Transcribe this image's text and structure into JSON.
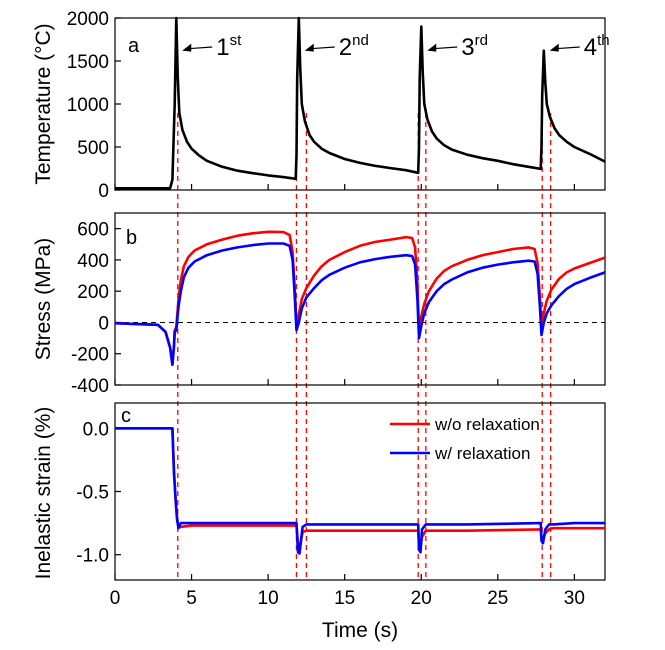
{
  "chart_data": [
    {
      "type": "line",
      "panel_label": "a",
      "ylabel": "Temperature (°C)",
      "ylim": [
        0,
        2000
      ],
      "yticks": [
        "0",
        "500",
        "1000",
        "1500",
        "2000"
      ],
      "xlim": [
        0,
        32
      ],
      "series": [
        {
          "color": "#000000",
          "x": [
            0,
            3.6,
            3.75,
            3.9,
            4.0,
            4.1,
            4.2,
            4.4,
            4.7,
            5.0,
            5.5,
            6,
            7,
            8,
            9,
            10,
            11,
            11.8,
            11.85,
            11.9,
            12.0,
            12.1,
            12.2,
            12.4,
            12.7,
            13,
            13.5,
            14,
            15,
            16,
            17,
            18,
            19,
            19.8,
            19.85,
            19.9,
            20.0,
            20.1,
            20.2,
            20.4,
            20.7,
            21,
            21.5,
            22,
            23,
            24,
            25,
            26,
            27,
            27.8,
            27.85,
            27.9,
            28.0,
            28.1,
            28.2,
            28.4,
            28.7,
            29,
            29.5,
            30,
            31,
            32
          ],
          "y": [
            20,
            20,
            120,
            1000,
            2000,
            1300,
            900,
            700,
            560,
            480,
            400,
            340,
            270,
            225,
            195,
            170,
            150,
            130,
            400,
            1300,
            2000,
            1400,
            1000,
            800,
            640,
            560,
            480,
            430,
            360,
            315,
            280,
            255,
            230,
            200,
            500,
            1300,
            1900,
            1350,
            1000,
            820,
            680,
            600,
            520,
            470,
            410,
            370,
            340,
            300,
            270,
            245,
            500,
            1100,
            1620,
            1250,
            1000,
            850,
            720,
            640,
            560,
            500,
            420,
            330
          ]
        }
      ],
      "annotations": [
        {
          "base": "1",
          "sup": "st",
          "x": 4.0,
          "y": 1620
        },
        {
          "base": "2",
          "sup": "nd",
          "x": 12.0,
          "y": 1620
        },
        {
          "base": "3",
          "sup": "rd",
          "x": 20.0,
          "y": 1620
        },
        {
          "base": "4",
          "sup": "th",
          "x": 28.0,
          "y": 1620
        }
      ]
    },
    {
      "type": "line",
      "panel_label": "b",
      "ylabel": "Stress (MPa)",
      "ylim": [
        -400,
        700
      ],
      "yticks": [
        "-400",
        "-200",
        "0",
        "200",
        "400",
        "600"
      ],
      "xlim": [
        0,
        32
      ],
      "zero_line": true,
      "series": [
        {
          "color": "#ff0000",
          "x": [
            0,
            2.8,
            3.3,
            3.6,
            3.75,
            3.85,
            3.9,
            4.0,
            4.15,
            4.3,
            4.5,
            4.8,
            5.2,
            6,
            7,
            8,
            9,
            10,
            11,
            11.4,
            11.6,
            11.75,
            11.85,
            12.0,
            12.2,
            12.5,
            13,
            13.5,
            14,
            15,
            16,
            17,
            18,
            19,
            19.4,
            19.6,
            19.75,
            19.85,
            20.0,
            20.2,
            20.5,
            21,
            21.5,
            22,
            23,
            24,
            25,
            26,
            27,
            27.4,
            27.6,
            27.75,
            27.85,
            28.0,
            28.2,
            28.5,
            29,
            29.5,
            30,
            31,
            32
          ],
          "y": [
            -5,
            -15,
            -60,
            -160,
            -270,
            -150,
            -50,
            -30,
            150,
            270,
            360,
            420,
            460,
            500,
            530,
            555,
            570,
            580,
            578,
            560,
            450,
            200,
            -20,
            50,
            150,
            220,
            300,
            360,
            400,
            450,
            490,
            515,
            530,
            545,
            540,
            480,
            250,
            -40,
            40,
            120,
            200,
            280,
            330,
            360,
            400,
            430,
            450,
            470,
            480,
            470,
            380,
            160,
            -20,
            60,
            140,
            210,
            280,
            320,
            345,
            380,
            415
          ]
        },
        {
          "color": "#0000ff",
          "x": [
            0,
            2.8,
            3.3,
            3.6,
            3.75,
            3.85,
            3.9,
            4.0,
            4.15,
            4.3,
            4.5,
            4.8,
            5.2,
            6,
            7,
            8,
            9,
            10,
            11,
            11.4,
            11.6,
            11.75,
            11.85,
            12.0,
            12.2,
            12.5,
            13,
            13.5,
            14,
            15,
            16,
            17,
            18,
            19,
            19.4,
            19.6,
            19.75,
            19.85,
            20.0,
            20.2,
            20.5,
            21,
            21.5,
            22,
            23,
            24,
            25,
            26,
            27,
            27.4,
            27.6,
            27.75,
            27.85,
            28.0,
            28.2,
            28.5,
            29,
            29.5,
            30,
            31,
            32
          ],
          "y": [
            -5,
            -15,
            -60,
            -160,
            -270,
            -150,
            -60,
            -50,
            100,
            200,
            290,
            350,
            390,
            430,
            460,
            480,
            495,
            505,
            505,
            490,
            400,
            150,
            -50,
            0,
            90,
            160,
            220,
            270,
            305,
            350,
            385,
            405,
            420,
            430,
            425,
            370,
            150,
            -100,
            -20,
            60,
            130,
            200,
            245,
            275,
            320,
            350,
            370,
            385,
            395,
            390,
            310,
            100,
            -80,
            0,
            60,
            110,
            170,
            215,
            245,
            285,
            320
          ]
        }
      ]
    },
    {
      "type": "line",
      "panel_label": "c",
      "ylabel": "Inelastic strain (%)",
      "ylim": [
        -1.2,
        0.2
      ],
      "yticks": [
        "-1.0",
        "-0.5",
        "0.0"
      ],
      "xlim": [
        0,
        32
      ],
      "xlabel": "Time (s)",
      "xticks": [
        "0",
        "5",
        "10",
        "15",
        "20",
        "25",
        "30"
      ],
      "series": [
        {
          "name": "w/o relaxation",
          "color": "#ff0000",
          "x": [
            0,
            3.75,
            3.85,
            3.95,
            4.05,
            4.15,
            4.3,
            5,
            8,
            11.85,
            11.95,
            12.05,
            12.25,
            12.5,
            15,
            19.8,
            19.85,
            19.95,
            20.05,
            20.3,
            20.5,
            23,
            27.8,
            27.85,
            27.95,
            28.1,
            28.35,
            28.6,
            30,
            32
          ],
          "y": [
            0.0,
            0.0,
            -0.35,
            -0.55,
            -0.7,
            -0.78,
            -0.78,
            -0.77,
            -0.77,
            -0.77,
            -0.92,
            -0.95,
            -0.82,
            -0.81,
            -0.81,
            -0.81,
            -0.92,
            -0.94,
            -0.86,
            -0.81,
            -0.81,
            -0.81,
            -0.8,
            -0.86,
            -0.88,
            -0.83,
            -0.8,
            -0.79,
            -0.79,
            -0.79
          ]
        },
        {
          "name": "w/ relaxation",
          "color": "#0000ff",
          "x": [
            0,
            3.75,
            3.85,
            3.95,
            4.05,
            4.15,
            4.3,
            5,
            8,
            11.85,
            11.95,
            12.05,
            12.25,
            12.5,
            15,
            19.8,
            19.85,
            19.95,
            20.05,
            20.3,
            20.5,
            23,
            27.8,
            27.85,
            27.95,
            28.1,
            28.35,
            28.6,
            30,
            32
          ],
          "y": [
            0.0,
            0.0,
            -0.35,
            -0.55,
            -0.72,
            -0.79,
            -0.75,
            -0.75,
            -0.75,
            -0.75,
            -0.98,
            -0.99,
            -0.78,
            -0.76,
            -0.76,
            -0.76,
            -0.96,
            -0.98,
            -0.8,
            -0.76,
            -0.76,
            -0.76,
            -0.75,
            -0.89,
            -0.91,
            -0.8,
            -0.76,
            -0.76,
            -0.75,
            -0.75
          ]
        }
      ],
      "legend": {
        "placement": "top-right",
        "entries": [
          "w/o relaxation",
          "w/ relaxation"
        ]
      }
    }
  ],
  "event_markers": {
    "color": "#ff0000",
    "x": [
      4.1,
      11.85,
      12.5,
      19.8,
      20.3,
      27.9,
      28.45
    ]
  }
}
